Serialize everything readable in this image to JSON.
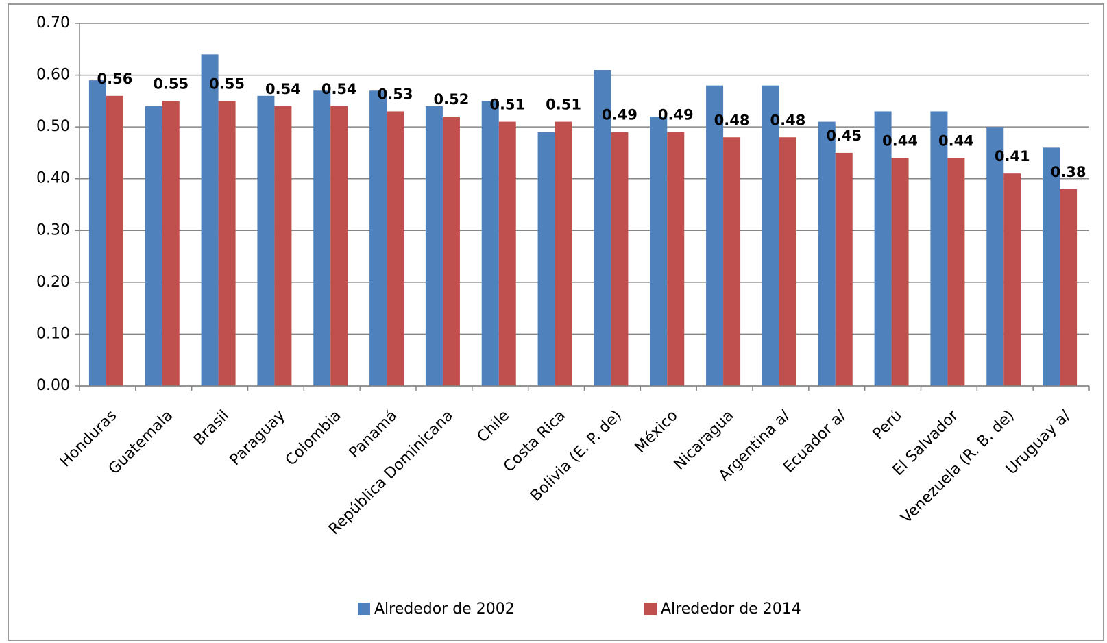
{
  "chart_data": {
    "type": "bar",
    "categories": [
      "Honduras",
      "Guatemala",
      "Brasil",
      "Paraguay",
      "Colombia",
      "Panamá",
      "República Dominicana",
      "Chile",
      "Costa Rica",
      "Bolivia (E. P. de)",
      "México",
      "Nicaragua",
      "Argentina a/",
      "Ecuador a/",
      "Perú",
      "El Salvador",
      "Venezuela (R. B. de)",
      "Uruguay a/"
    ],
    "series": [
      {
        "name": "Alrededor de 2002",
        "color": "#4f81bd",
        "values": [
          0.59,
          0.54,
          0.64,
          0.56,
          0.57,
          0.57,
          0.54,
          0.55,
          0.49,
          0.61,
          0.52,
          0.58,
          0.58,
          0.51,
          0.53,
          0.53,
          0.5,
          0.46
        ]
      },
      {
        "name": "Alrededor de 2014",
        "color": "#c0504d",
        "values": [
          0.56,
          0.55,
          0.55,
          0.54,
          0.54,
          0.53,
          0.52,
          0.51,
          0.51,
          0.49,
          0.49,
          0.48,
          0.48,
          0.45,
          0.44,
          0.44,
          0.41,
          0.38
        ]
      }
    ],
    "ylim": [
      0,
      0.7
    ],
    "yticks": [
      {
        "value": 0,
        "label": "0.00"
      },
      {
        "value": 0.1,
        "label": "0.10"
      },
      {
        "value": 0.2,
        "label": "0.20"
      },
      {
        "value": 0.3,
        "label": "0.30"
      },
      {
        "value": 0.4,
        "label": "0.40"
      },
      {
        "value": 0.5,
        "label": "0.50"
      },
      {
        "value": 0.6,
        "label": "0.60"
      },
      {
        "value": 0.7,
        "label": "0.70"
      }
    ],
    "grid": true,
    "legend": "bottom"
  }
}
